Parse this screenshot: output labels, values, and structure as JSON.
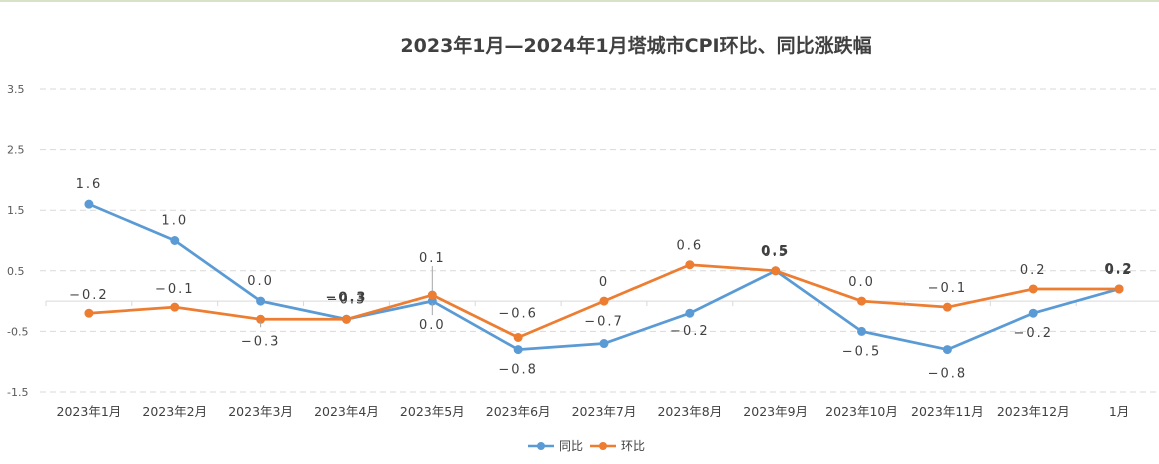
{
  "chart_data": {
    "type": "line",
    "title": "2023年1月—2024年1月塔城市CPI环比、同比涨跌幅",
    "xlabel": "",
    "ylabel": "",
    "categories": [
      "2023年1月",
      "2023年2月",
      "2023年3月",
      "2023年4月",
      "2023年5月",
      "2023年6月",
      "2023年7月",
      "2023年8月",
      "2023年9月",
      "2023年10月",
      "2023年11月",
      "2023年12月",
      "1月"
    ],
    "ylim": [
      -1.5,
      3.5
    ],
    "yticks": [
      "3.5",
      "2.5",
      "1.5",
      "0.5",
      "-0.5",
      "-1.5"
    ],
    "ytick_values": [
      3.5,
      2.5,
      1.5,
      0.5,
      -0.5,
      -1.5
    ],
    "grid": true,
    "legend_position": "bottom-center",
    "series": [
      {
        "name": "同比",
        "color": "#5b9bd5",
        "values": [
          1.6,
          1.0,
          0.0,
          -0.3,
          0.0,
          -0.8,
          -0.7,
          -0.2,
          0.5,
          -0.5,
          -0.8,
          -0.2,
          0.2
        ],
        "labels": [
          "1.6",
          "1.0",
          "0.0",
          "-0.3",
          "0.0",
          "-0.8",
          "-0.7",
          "-0.2",
          "0.5",
          "-0.5",
          "-0.8",
          "-0.2",
          "0.2"
        ]
      },
      {
        "name": "环比",
        "color": "#ed7d31",
        "values": [
          -0.2,
          -0.1,
          -0.3,
          -0.3,
          0.1,
          -0.6,
          0.0,
          0.6,
          0.5,
          0.0,
          -0.1,
          0.2,
          0.2
        ],
        "labels": [
          "-0.2",
          "-0.1",
          "-0.3",
          "-0.3",
          "0.1",
          "-0.6",
          "0",
          "0.6",
          "0.5",
          "0.0",
          "-0.1",
          "0.2",
          "0.2"
        ]
      }
    ]
  }
}
